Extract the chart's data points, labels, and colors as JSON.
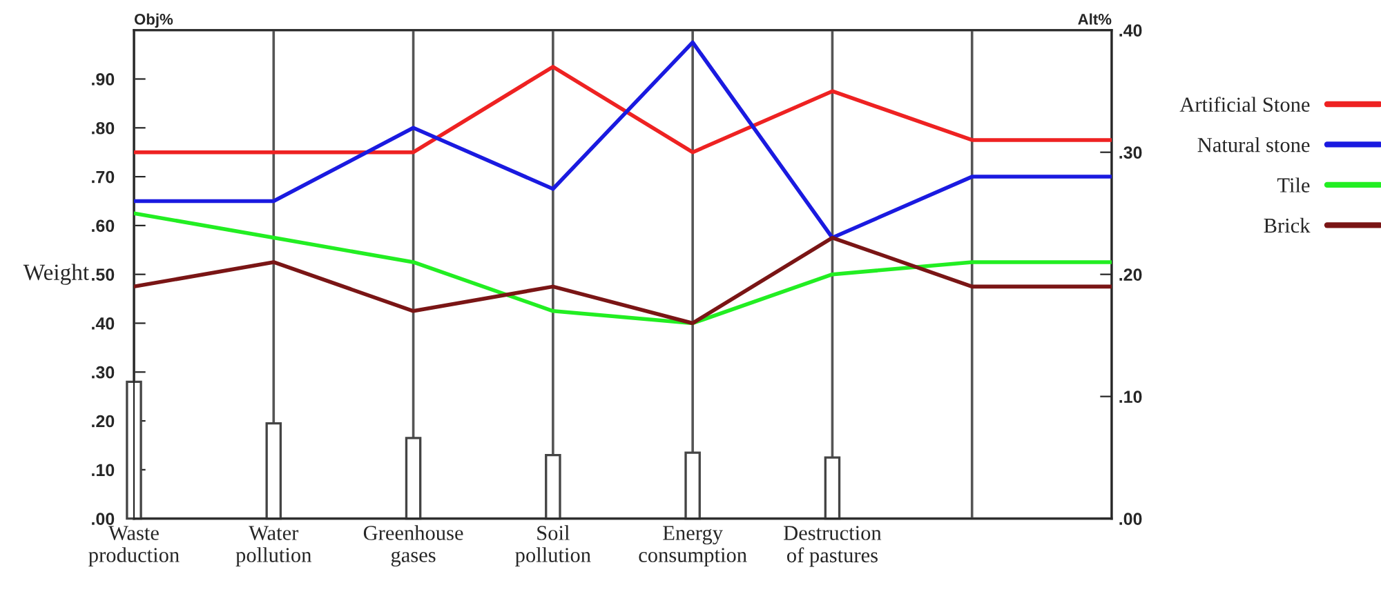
{
  "chart_data": {
    "type": "line",
    "ylabel": "Weight",
    "y2label": "Alt%",
    "annotations": [
      "Obj%"
    ],
    "categories": [
      "Waste\nproduction",
      "Water\npollution",
      "Greenhouse\ngases",
      "Soil\npollution",
      "Energy\nconsumption",
      "Destruction\nof pastures",
      null,
      null
    ],
    "ylim": [
      0,
      1.0
    ],
    "yticks": [
      {
        "value": 0,
        "label": ".00"
      },
      {
        "value": 0.1,
        "label": ".10"
      },
      {
        "value": 0.2,
        "label": ".20"
      },
      {
        "value": 0.3,
        "label": ".30"
      },
      {
        "value": 0.4,
        "label": ".40"
      },
      {
        "value": 0.5,
        "label": ".50"
      },
      {
        "value": 0.6,
        "label": ".60"
      },
      {
        "value": 0.7,
        "label": ".70"
      },
      {
        "value": 0.8,
        "label": ".80"
      },
      {
        "value": 0.9,
        "label": ".90"
      }
    ],
    "y2lim": [
      0,
      0.4
    ],
    "y2ticks": [
      {
        "value": 0,
        "label": ".00"
      },
      {
        "value": 0.1,
        "label": ".10"
      },
      {
        "value": 0.2,
        "label": ".20"
      },
      {
        "value": 0.3,
        "label": ".30"
      },
      {
        "value": 0.4,
        "label": ".40"
      }
    ],
    "grid": "x",
    "legend": "right",
    "series": [
      {
        "type": "bar",
        "axis": "y",
        "color": "#ffffff",
        "values": [
          0.28,
          0.195,
          0.165,
          0.13,
          0.135,
          0.125,
          null,
          null
        ]
      },
      {
        "name": "Artificial Stone",
        "axis": "y2",
        "color": "#ee2222",
        "values": [
          0.3,
          0.3,
          0.3,
          0.37,
          0.3,
          0.35,
          0.31,
          0.31
        ]
      },
      {
        "name": "Natural stone",
        "axis": "y2",
        "color": "#1a1ae0",
        "values": [
          0.26,
          0.26,
          0.32,
          0.27,
          0.39,
          0.23,
          0.28,
          0.28
        ]
      },
      {
        "name": "Tile",
        "axis": "y2",
        "color": "#22ee22",
        "values": [
          0.25,
          0.23,
          0.21,
          0.17,
          0.16,
          0.2,
          0.21,
          0.21
        ]
      },
      {
        "name": "Brick",
        "axis": "y2",
        "color": "#7a1515",
        "values": [
          0.19,
          0.21,
          0.17,
          0.19,
          0.16,
          0.23,
          0.19,
          0.19
        ]
      }
    ]
  }
}
